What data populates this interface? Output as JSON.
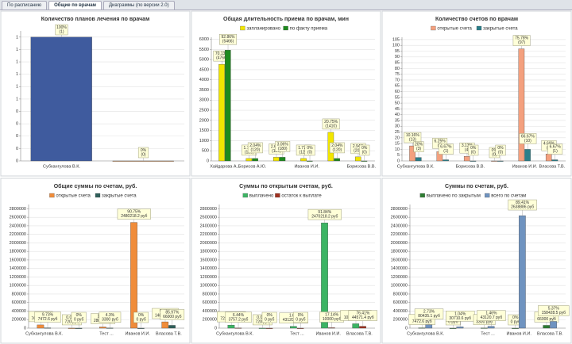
{
  "tabs": [
    "По расписанию",
    "Общие по врачам",
    "Диаграммы (по версии 2.0)"
  ],
  "chart_data": [
    {
      "type": "bar",
      "title": "Количество планов лечения по врачам",
      "categories": [
        "Субхангулова В.К.",
        null
      ],
      "values": [
        1,
        0
      ],
      "colors": [
        "#3f5b9e",
        "#f5a05a"
      ],
      "value_labels": [
        [
          "100%",
          "(1)"
        ],
        [
          "0%",
          "(0)"
        ]
      ],
      "ylim": [
        0,
        1.05
      ],
      "yticks": [
        0,
        {
          "value": 0.1,
          "label": "0"
        },
        {
          "value": 0.2,
          "label": "0"
        },
        {
          "value": 0.3,
          "label": "0"
        },
        {
          "value": 0.4,
          "label": "0"
        },
        {
          "value": 0.5,
          "label": "1"
        },
        {
          "value": 0.6,
          "label": "1"
        },
        {
          "value": 0.7,
          "label": "1"
        },
        {
          "value": 0.8,
          "label": "1"
        },
        {
          "value": 0.9,
          "label": "1"
        },
        1
      ],
      "grid": true
    },
    {
      "type": "bar",
      "title": "Общая длительность приема по врачам, мин",
      "categories": [
        "Хайдарова А...",
        "Борисов А.Ю.",
        null,
        "Иванов И.И.",
        null,
        "Борисова В.В."
      ],
      "series": [
        {
          "name": "запланировано",
          "color": "#f2e600",
          "values": [
            4766,
            120,
            180,
            120,
            1410,
            200
          ],
          "value_labels": [
            [
              "70.13%",
              "(4766)"
            ],
            [
              "1.77%",
              "(120)"
            ],
            [
              "2.65%",
              "(180)"
            ],
            [
              "1.77%",
              "(120)"
            ],
            [
              "20.75%",
              "(1410)"
            ],
            [
              "2.94%",
              "(200)"
            ]
          ]
        },
        {
          "name": "по факту приема",
          "color": "#1e8a1e",
          "values": [
            5466,
            120,
            180,
            0,
            120,
            0
          ],
          "value_labels": [
            [
              "92.86%",
              "(5466)"
            ],
            [
              "2.04%",
              "(120)"
            ],
            [
              "3.06%",
              "(180)"
            ],
            [
              "0%",
              "(0)"
            ],
            [
              "2.04%",
              "(120)"
            ],
            [
              "0%",
              "(0)"
            ]
          ]
        }
      ],
      "ylim": [
        0,
        6100
      ],
      "yticks": [
        0,
        500,
        1000,
        1500,
        2000,
        2500,
        3000,
        3500,
        4000,
        4500,
        5000,
        5500,
        6000
      ],
      "grid": true
    },
    {
      "type": "bar",
      "title": "Количество счетов по врачам",
      "categories": [
        "Субхангулова В.К.",
        null,
        "Борисова В.В.",
        null,
        "Иванов И.И.",
        "Власова Т.В."
      ],
      "series": [
        {
          "name": "открытые счета",
          "color": "#f4a07e",
          "values": [
            13,
            8,
            4,
            0,
            97,
            6
          ],
          "value_labels": [
            [
              "10.16%",
              "(13)"
            ],
            [
              "6.25%",
              "(8)"
            ],
            [
              "3.13%",
              "(4)"
            ],
            [
              "0%",
              "(0)"
            ],
            [
              "75.78%",
              "(97)"
            ],
            [
              "4.69%",
              "(6)"
            ]
          ]
        },
        {
          "name": "закрытые счета",
          "color": "#2a7f8a",
          "values": [
            3,
            1,
            0,
            0,
            10,
            1
          ],
          "value_labels": [
            [
              "20%",
              "(3)"
            ],
            [
              "6.67%",
              "(1)"
            ],
            [
              "0%",
              "(0)"
            ],
            [
              "0%",
              "(0)"
            ],
            [
              "66.67%",
              "(10)"
            ],
            [
              "6.67%",
              "(1)"
            ]
          ]
        }
      ],
      "ylim": [
        0,
        107
      ],
      "yticks": [
        0,
        5,
        10,
        15,
        20,
        25,
        30,
        35,
        40,
        45,
        50,
        55,
        60,
        65,
        70,
        75,
        80,
        85,
        90,
        95,
        100,
        105
      ],
      "grid": true
    },
    {
      "type": "bar",
      "title": "Общие суммы по счетам, руб.",
      "categories": [
        "Субхангулова В.К.",
        null,
        "Тест ...",
        "Иванов И.И.",
        "Власова Т.В."
      ],
      "series": [
        {
          "name": "открытые счета",
          "color": "#f08c3a",
          "values": [
            76000,
            720,
            28000,
            2480218.2,
            148000
          ],
          "value_labels": [
            [
              "2.78%",
              "76000 руб"
            ],
            [
              "0.03%",
              "720 руб"
            ],
            [
              "1.02%",
              "28000 руб"
            ],
            [
              "90.75%",
              "2480218.2 руб"
            ],
            [
              "5.42%",
              "148000 руб"
            ]
          ]
        },
        {
          "name": "закрытые счета",
          "color": "#2e5f5a",
          "values": [
            7472.6,
            0,
            3300,
            0,
            66000
          ],
          "value_labels": [
            [
              "9.73%",
              "7472.6 руб"
            ],
            [
              "0%",
              "0 руб"
            ],
            [
              "4.3%",
              "3300 руб"
            ],
            [
              "0%",
              "0 руб"
            ],
            [
              "85.97%",
              "66000 руб"
            ]
          ]
        }
      ],
      "ylim": [
        0,
        2900000
      ],
      "yticks": [
        0,
        200000,
        400000,
        600000,
        800000,
        1000000,
        1200000,
        1400000,
        1600000,
        1800000,
        2000000,
        2200000,
        2400000,
        2600000,
        2800000
      ],
      "grid": true
    },
    {
      "type": "bar",
      "title": "Суммы по открытым счетам, руб.",
      "categories": [
        "Субхангулова В.К.",
        null,
        "Тест ...",
        "Иванов И.И.",
        "Власова Т.В."
      ],
      "series": [
        {
          "name": "выплачено",
          "color": "#3cb464",
          "values": [
            72242.8,
            720,
            43120.7,
            2470218.2,
            103428.6
          ],
          "value_labels": [
            [
              "2.69%",
              "72242.8 руб"
            ],
            [
              "0.03%",
              "720 руб"
            ],
            [
              "1.6%",
              "43120.7 руб"
            ],
            [
              "91.84%",
              "2470218.2 руб"
            ],
            [
              "3.85%",
              "103428.6 руб"
            ]
          ]
        },
        {
          "name": "остаток к выплате",
          "color": "#a0301e",
          "values": [
            3757.2,
            0,
            0,
            10000,
            44571.4
          ],
          "value_labels": [
            [
              "6.44%",
              "3757.2 руб"
            ],
            [
              "0%",
              "0 руб"
            ],
            [
              "0%",
              "0 руб"
            ],
            [
              "17.14%",
              "10000 руб"
            ],
            [
              "76.41%",
              "44571.4 руб"
            ]
          ]
        }
      ],
      "ylim": [
        0,
        2900000
      ],
      "yticks": [
        0,
        200000,
        400000,
        600000,
        800000,
        1000000,
        1200000,
        1400000,
        1600000,
        1800000,
        2000000,
        2200000,
        2400000,
        2600000,
        2800000
      ],
      "grid": true
    },
    {
      "type": "bar",
      "title": "Суммы по счетам, руб.",
      "categories": [
        "Субхангулова В.К.",
        null,
        "Тест ...",
        "Иванов И.И.",
        "Власова Т.В."
      ],
      "series": [
        {
          "name": "выплачено по закрытым",
          "color": "#2e7d32",
          "values": [
            7472.6,
            0,
            3300,
            0,
            66000
          ],
          "value_labels": [
            [
              "9.73%",
              "7472.6 руб"
            ],
            [
              "0%",
              "0 руб"
            ],
            [
              "4.3%",
              "3300 руб"
            ],
            [
              "0%",
              "0 руб"
            ],
            [
              "85.97%",
              "66000 руб"
            ]
          ]
        },
        {
          "name": "всего по счетам",
          "color": "#6f93c0",
          "values": [
            80435.1,
            30710.6,
            43120.7,
            2638886.0,
            158428.5
          ],
          "value_labels": [
            [
              "2.73%",
              "80435.1 руб"
            ],
            [
              "1.04%",
              "30710.6 руб"
            ],
            [
              "1.46%",
              "43120.7 руб"
            ],
            [
              "89.41%",
              "2638886 руб"
            ],
            [
              "5.37%",
              "158428.5 руб"
            ]
          ]
        }
      ],
      "ylim": [
        0,
        2900000
      ],
      "yticks": [
        0,
        200000,
        400000,
        600000,
        800000,
        1000000,
        1200000,
        1400000,
        1600000,
        1800000,
        2000000,
        2200000,
        2400000,
        2600000,
        2800000
      ],
      "grid": true
    }
  ]
}
